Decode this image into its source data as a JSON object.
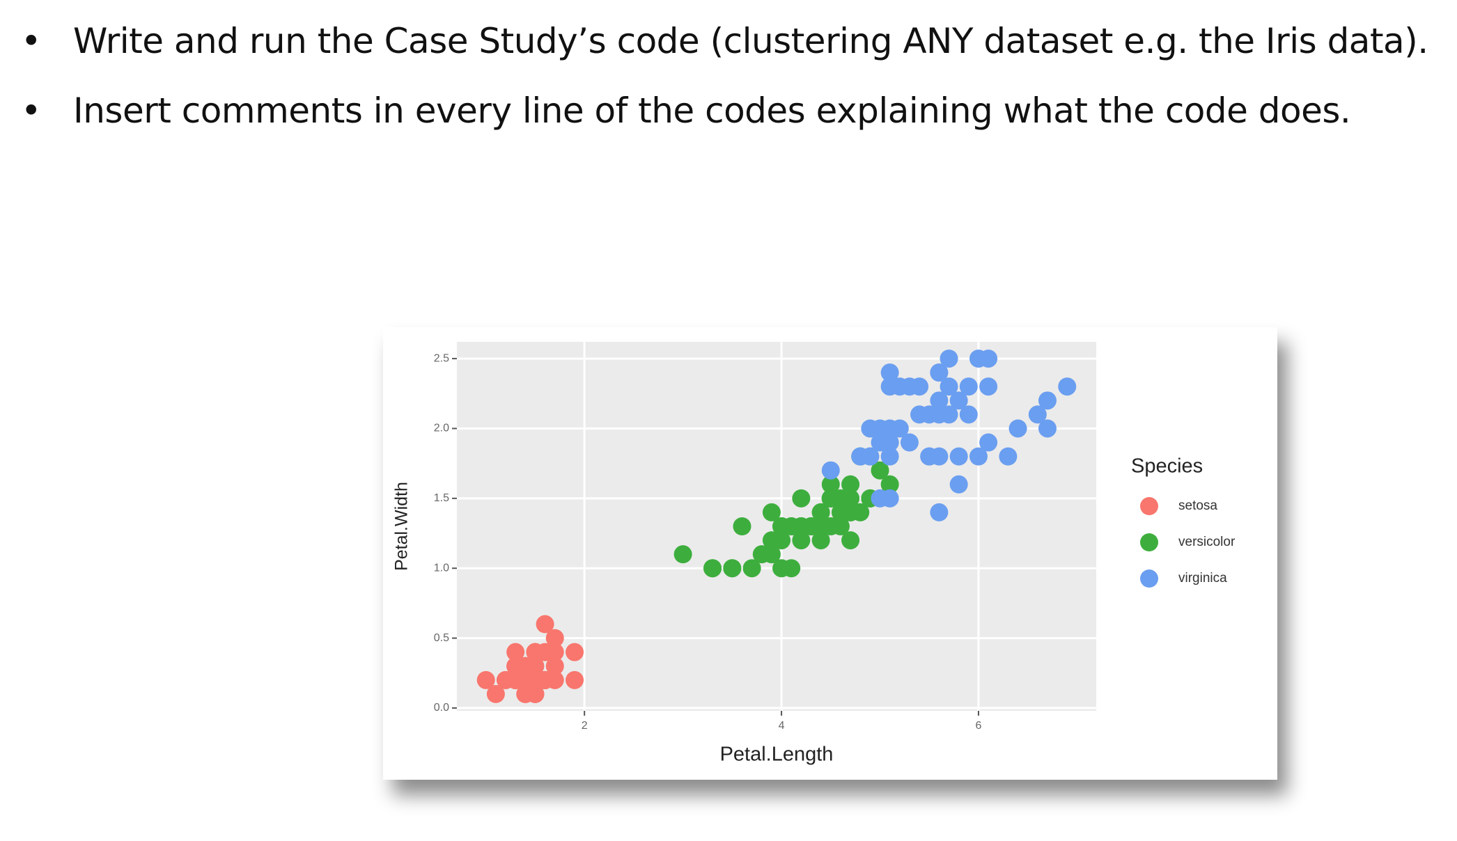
{
  "bullets": [
    "Write and run the Case Study’s code (clustering ANY dataset e.g. the Iris data).",
    "Insert comments in every line of the codes explaining what the code does."
  ],
  "chart_data": {
    "type": "scatter",
    "xlabel": "Petal.Length",
    "ylabel": "Petal.Width",
    "legend_title": "Species",
    "legend": "right",
    "grid": true,
    "xlim": [
      0.705,
      7.195
    ],
    "xticks": [
      2,
      4,
      6
    ],
    "ylim": [
      -0.02,
      2.62
    ],
    "yticks": [
      {
        "value": 0,
        "label": "0.0"
      },
      0.5,
      {
        "value": 1,
        "label": "1.0"
      },
      1.5,
      {
        "value": 2,
        "label": "2.0"
      },
      2.5
    ],
    "series": [
      {
        "name": "setosa",
        "color": "#F8766D",
        "x": [
          1.4,
          1.4,
          1.3,
          1.5,
          1.4,
          1.7,
          1.4,
          1.5,
          1.4,
          1.5,
          1.5,
          1.6,
          1.4,
          1.1,
          1.2,
          1.5,
          1.3,
          1.4,
          1.7,
          1.5,
          1.7,
          1.5,
          1.0,
          1.7,
          1.9,
          1.6,
          1.6,
          1.5,
          1.4,
          1.6,
          1.6,
          1.5,
          1.5,
          1.4,
          1.5,
          1.2,
          1.3,
          1.4,
          1.3,
          1.5,
          1.3,
          1.3,
          1.3,
          1.6,
          1.9,
          1.4,
          1.6,
          1.4,
          1.5,
          1.4
        ],
        "values": [
          0.2,
          0.2,
          0.2,
          0.2,
          0.2,
          0.4,
          0.3,
          0.2,
          0.2,
          0.1,
          0.2,
          0.2,
          0.1,
          0.1,
          0.2,
          0.4,
          0.4,
          0.3,
          0.3,
          0.3,
          0.2,
          0.4,
          0.2,
          0.5,
          0.2,
          0.2,
          0.4,
          0.2,
          0.2,
          0.2,
          0.2,
          0.4,
          0.1,
          0.2,
          0.2,
          0.2,
          0.2,
          0.1,
          0.2,
          0.2,
          0.3,
          0.3,
          0.2,
          0.6,
          0.4,
          0.3,
          0.2,
          0.2,
          0.2,
          0.2
        ]
      },
      {
        "name": "versicolor",
        "color": "#3DAE3D",
        "x": [
          4.7,
          4.5,
          4.9,
          4.0,
          4.6,
          4.5,
          4.7,
          3.3,
          4.6,
          3.9,
          3.5,
          4.2,
          4.0,
          4.7,
          3.6,
          4.4,
          4.5,
          4.1,
          4.5,
          3.9,
          4.8,
          4.0,
          4.9,
          4.7,
          4.3,
          4.4,
          4.8,
          5.0,
          4.5,
          3.5,
          3.8,
          3.7,
          3.9,
          5.1,
          4.5,
          4.5,
          4.7,
          4.4,
          4.1,
          4.0,
          4.4,
          4.6,
          4.0,
          3.3,
          4.2,
          4.2,
          4.2,
          4.3,
          3.0,
          4.1
        ],
        "values": [
          1.4,
          1.5,
          1.5,
          1.3,
          1.5,
          1.3,
          1.6,
          1.0,
          1.3,
          1.4,
          1.0,
          1.5,
          1.0,
          1.4,
          1.3,
          1.4,
          1.5,
          1.0,
          1.5,
          1.1,
          1.8,
          1.3,
          1.5,
          1.2,
          1.3,
          1.4,
          1.4,
          1.7,
          1.5,
          1.0,
          1.1,
          1.0,
          1.2,
          1.6,
          1.5,
          1.6,
          1.5,
          1.3,
          1.3,
          1.3,
          1.2,
          1.4,
          1.2,
          1.0,
          1.3,
          1.2,
          1.3,
          1.3,
          1.1,
          1.3
        ]
      },
      {
        "name": "virginica",
        "color": "#6A9EF0",
        "x": [
          6.0,
          5.1,
          5.9,
          5.6,
          5.8,
          6.6,
          4.5,
          6.3,
          5.8,
          6.1,
          5.1,
          5.3,
          5.5,
          5.0,
          5.1,
          5.3,
          5.5,
          6.7,
          6.9,
          5.0,
          5.7,
          4.9,
          6.7,
          4.9,
          5.7,
          6.0,
          4.8,
          4.9,
          5.6,
          5.8,
          6.1,
          6.4,
          5.6,
          5.1,
          5.6,
          6.1,
          5.6,
          5.5,
          4.8,
          5.4,
          5.6,
          5.1,
          5.1,
          5.9,
          5.7,
          5.2,
          5.0,
          5.2,
          5.4,
          5.1
        ],
        "values": [
          2.5,
          1.9,
          2.1,
          1.8,
          2.2,
          2.1,
          1.7,
          1.8,
          1.8,
          2.5,
          2.0,
          1.9,
          2.1,
          2.0,
          2.4,
          2.3,
          1.8,
          2.2,
          2.3,
          1.5,
          2.3,
          2.0,
          2.0,
          1.8,
          2.1,
          1.8,
          1.8,
          1.8,
          2.1,
          1.6,
          1.9,
          2.0,
          2.2,
          1.5,
          1.4,
          2.3,
          2.4,
          1.8,
          1.8,
          2.1,
          2.4,
          2.3,
          1.9,
          2.3,
          2.5,
          2.3,
          1.9,
          2.0,
          2.3,
          1.8
        ]
      }
    ]
  }
}
